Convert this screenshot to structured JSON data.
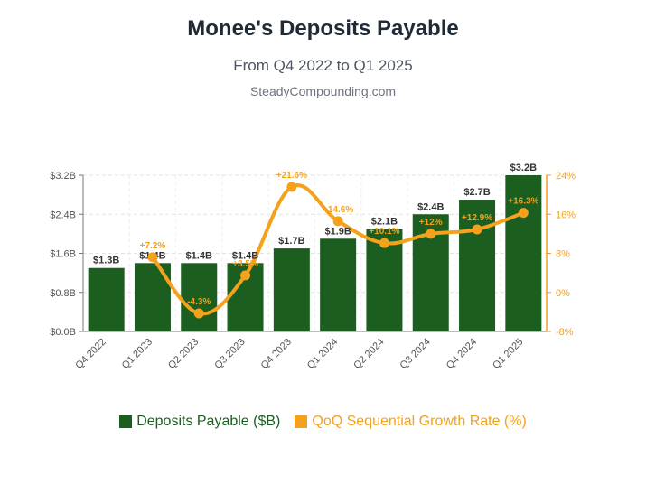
{
  "header": {
    "title": "Monee's Deposits Payable",
    "subtitle": "From Q4 2022 to Q1 2025",
    "source": "SteadyCompounding.com"
  },
  "colors": {
    "bar": "#1b5e20",
    "line": "#f4a11c",
    "axis_left": "#555555",
    "axis_right": "#f4a11c"
  },
  "legend": {
    "bars_label": "Deposits Payable ($B)",
    "line_label": "QoQ Sequential Growth Rate (%)"
  },
  "chart_data": {
    "type": "bar",
    "categories": [
      "Q4 2022",
      "Q1 2023",
      "Q2 2023",
      "Q3 2023",
      "Q4 2023",
      "Q1 2024",
      "Q2 2024",
      "Q3 2024",
      "Q4 2024",
      "Q1 2025"
    ],
    "series": [
      {
        "name": "Deposits Payable ($B)",
        "type": "bar",
        "axis": "left",
        "values": [
          1.3,
          1.4,
          1.4,
          1.4,
          1.7,
          1.9,
          2.1,
          2.4,
          2.7,
          3.2
        ],
        "labels": [
          "$1.3B",
          "$1.4B",
          "$1.4B",
          "$1.4B",
          "$1.7B",
          "$1.9B",
          "$2.1B",
          "$2.4B",
          "$2.7B",
          "$3.2B"
        ]
      },
      {
        "name": "QoQ Sequential Growth Rate (%)",
        "type": "line",
        "axis": "right",
        "values": [
          null,
          7.2,
          -4.3,
          3.5,
          21.6,
          14.6,
          10.1,
          12.0,
          12.9,
          16.3
        ],
        "labels": [
          "",
          "+7.2%",
          "-4.3%",
          "+3.5%",
          "+21.6%",
          "+14.6%",
          "+10.1%",
          "+12%",
          "+12.9%",
          "+16.3%"
        ]
      }
    ],
    "y_left": {
      "ticks": [
        "$0.0B",
        "$0.8B",
        "$1.6B",
        "$2.4B",
        "$3.2B"
      ],
      "lim": [
        0,
        3.2
      ]
    },
    "y_right": {
      "ticks": [
        "-8%",
        "0%",
        "8%",
        "16%",
        "24%"
      ],
      "lim": [
        -8,
        24
      ]
    },
    "grid": true,
    "legend_position": "bottom"
  }
}
